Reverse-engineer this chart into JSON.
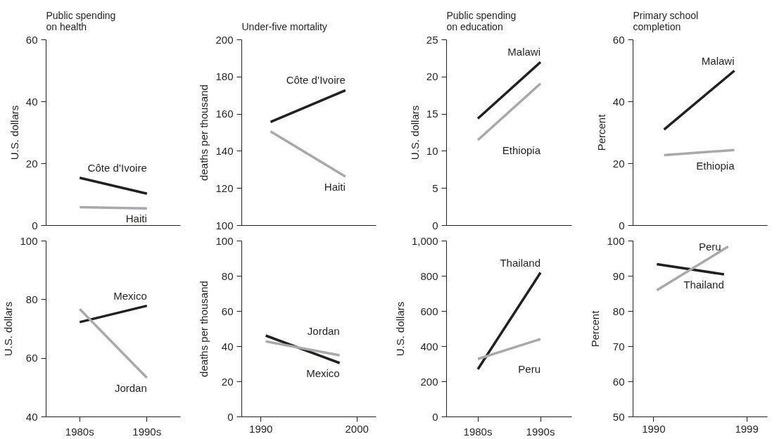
{
  "chart_data": [
    {
      "type": "line",
      "title": "Public spending\non health",
      "ylabel": "U.S. dollars",
      "categories": [
        null,
        null
      ],
      "ylim": [
        0,
        60
      ],
      "yticks": [
        0,
        20,
        40,
        60
      ],
      "tick_labels": "y",
      "series": [
        {
          "name": "Côte d’Ivoire",
          "color": "#231f20",
          "values": [
            15.4,
            10.3
          ]
        },
        {
          "name": "Haiti",
          "color": "#a7a9ac",
          "values": [
            5.9,
            5.5
          ]
        }
      ]
    },
    {
      "type": "line",
      "title": "Under-five mortality",
      "ylabel": "deaths per thousand",
      "xlim": [
        1988,
        2002
      ],
      "ylim": [
        100,
        200
      ],
      "yticks": [
        100,
        120,
        140,
        160,
        180,
        200
      ],
      "tick_labels": "y",
      "series": [
        {
          "name": "Côte d’Ivoire",
          "color": "#231f20",
          "x": [
            1991,
            1998.8
          ],
          "values": [
            155.7,
            172.8
          ]
        },
        {
          "name": "Haiti",
          "color": "#a7a9ac",
          "x": [
            1991,
            1998.8
          ],
          "values": [
            150.7,
            126.3
          ]
        }
      ]
    },
    {
      "type": "line",
      "title": "Public spending\non education",
      "ylabel": "U.S. dollars",
      "categories": [
        null,
        null
      ],
      "ylim": [
        0,
        25
      ],
      "yticks": [
        0,
        5,
        10,
        15,
        20,
        25
      ],
      "tick_labels": "y",
      "series": [
        {
          "name": "Malawi",
          "color": "#231f20",
          "values": [
            14.4,
            22.0
          ]
        },
        {
          "name": "Ethiopia",
          "color": "#a7a9ac",
          "values": [
            11.5,
            19.1
          ]
        }
      ]
    },
    {
      "type": "line",
      "title": "Primary school\ncompletion",
      "ylabel": "Percent",
      "xlim": [
        1988,
        2001
      ],
      "ylim": [
        0,
        60
      ],
      "yticks": [
        0,
        20,
        40,
        60
      ],
      "tick_labels": "y",
      "series": [
        {
          "name": "Malawi",
          "color": "#231f20",
          "x": [
            1991,
            1997.8
          ],
          "values": [
            31.0,
            50.0
          ]
        },
        {
          "name": "Ethiopia",
          "color": "#a7a9ac",
          "x": [
            1991,
            1997.8
          ],
          "values": [
            22.7,
            24.4
          ]
        }
      ]
    },
    {
      "type": "line",
      "ylabel": "U.S. dollars",
      "categories": [
        "1980s",
        "1990s"
      ],
      "ylim": [
        40,
        100
      ],
      "yticks": [
        40,
        60,
        80,
        100
      ],
      "series": [
        {
          "name": "Mexico",
          "color": "#231f20",
          "values": [
            72.3,
            77.9
          ]
        },
        {
          "name": "Jordan",
          "color": "#a7a9ac",
          "values": [
            76.8,
            53.3
          ]
        }
      ]
    },
    {
      "type": "line",
      "ylabel": "deaths per thousand",
      "xlim": [
        1988,
        2002
      ],
      "xticks": [
        1990,
        2000
      ],
      "ylim": [
        0,
        100
      ],
      "yticks": [
        0,
        20,
        40,
        60,
        80,
        100
      ],
      "series": [
        {
          "name": "Mexico",
          "color": "#231f20",
          "x": [
            1990.5,
            1998.2
          ],
          "values": [
            46.2,
            30.6
          ]
        },
        {
          "name": "Jordan",
          "color": "#a7a9ac",
          "x": [
            1990.5,
            1998.2
          ],
          "values": [
            42.9,
            35.0
          ]
        }
      ]
    },
    {
      "type": "line",
      "ylabel": "U.S. dollars",
      "categories": [
        "1980s",
        "1990s"
      ],
      "ylim": [
        0,
        1000
      ],
      "yticks": [
        0,
        200,
        400,
        600,
        800,
        {
          "value": 1000,
          "label": "1,000"
        }
      ],
      "series": [
        {
          "name": "Thailand",
          "color": "#231f20",
          "values": [
            271,
            820
          ]
        },
        {
          "name": "Peru",
          "color": "#a7a9ac",
          "values": [
            329,
            442
          ]
        }
      ]
    },
    {
      "type": "line",
      "ylabel": "Percent",
      "xlim": [
        1988,
        2001
      ],
      "xticks": [
        1990,
        1999
      ],
      "ylim": [
        50,
        100
      ],
      "yticks": [
        50,
        60,
        70,
        80,
        90,
        100
      ],
      "series": [
        {
          "name": "Thailand",
          "color": "#231f20",
          "x": [
            1990.3,
            1996.8
          ],
          "values": [
            93.4,
            90.5
          ]
        },
        {
          "name": "Peru",
          "color": "#a7a9ac",
          "x": [
            1990.3,
            1997.2
          ],
          "values": [
            86.0,
            98.4
          ]
        }
      ]
    }
  ]
}
